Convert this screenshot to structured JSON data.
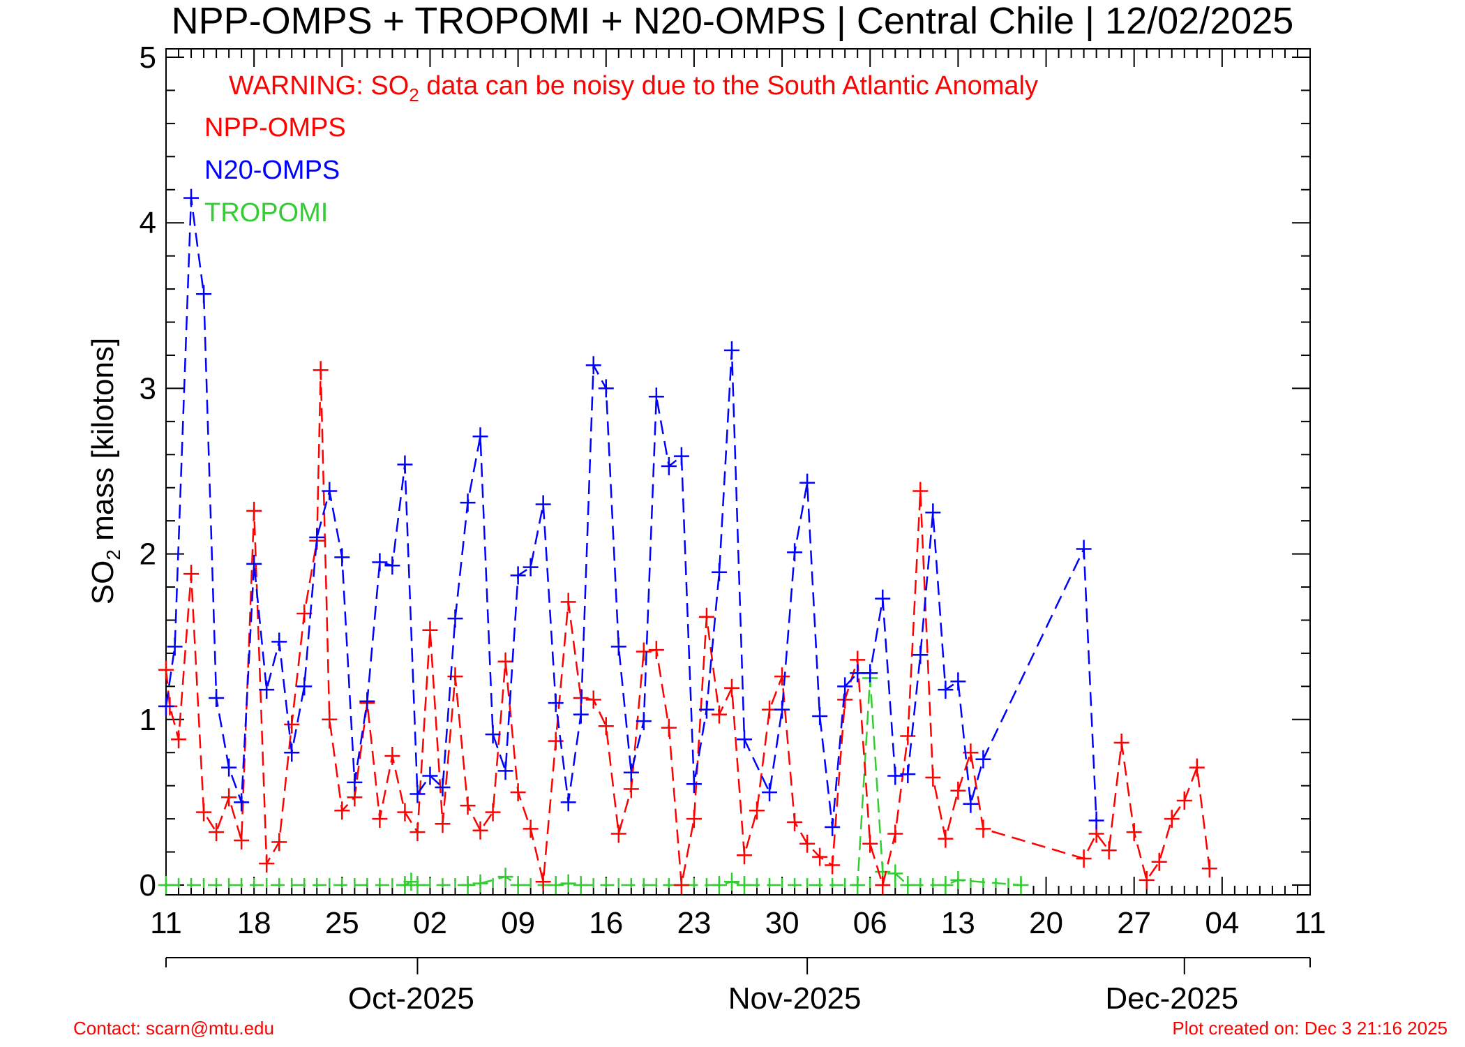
{
  "chart_data": {
    "type": "line",
    "title": "NPP-OMPS + TROPOMI + N20-OMPS | Central Chile | 12/02/2025",
    "ylabel_main": "SO",
    "ylabel_sub": "2",
    "ylabel_rest": " mass [kilotons]",
    "warning": {
      "prefix": "WARNING: SO",
      "sub": "2",
      "suffix": " data can be noisy due to the South Atlantic Anomaly",
      "color": "#ff0000"
    },
    "ylim": [
      0,
      5
    ],
    "yticks": [
      "0",
      "1",
      "2",
      "3",
      "4",
      "5"
    ],
    "x_range_days": [
      0,
      91
    ],
    "x_tick_labels": [
      "11",
      "18",
      "25",
      "02",
      "09",
      "16",
      "23",
      "30",
      "06",
      "13",
      "20",
      "27",
      "04",
      "11"
    ],
    "month_labels": [
      "Oct-2025",
      "Nov-2025",
      "Dec-2025"
    ],
    "month_positions_days": [
      19.5,
      50,
      80
    ],
    "grid": false,
    "legend_placement": "top-left",
    "series": [
      {
        "name": "NPP-OMPS",
        "color": "#ff0000",
        "points": [
          [
            0,
            1.3
          ],
          [
            0.3,
            1.08
          ],
          [
            1,
            0.88
          ],
          [
            2,
            1.88
          ],
          [
            3,
            0.44
          ],
          [
            4,
            0.32
          ],
          [
            5,
            0.53
          ],
          [
            6,
            0.27
          ],
          [
            7,
            2.26
          ],
          [
            8,
            0.13
          ],
          [
            9,
            0.26
          ],
          [
            10,
            0.97
          ],
          [
            11,
            1.64
          ],
          [
            12,
            2.08
          ],
          [
            12.3,
            3.11
          ],
          [
            13,
            1.0
          ],
          [
            14,
            0.45
          ],
          [
            15,
            0.53
          ],
          [
            16,
            1.1
          ],
          [
            17,
            0.4
          ],
          [
            18,
            0.78
          ],
          [
            19,
            0.44
          ],
          [
            20,
            0.32
          ],
          [
            21,
            1.54
          ],
          [
            22,
            0.37
          ],
          [
            23,
            1.26
          ],
          [
            24,
            0.48
          ],
          [
            25,
            0.33
          ],
          [
            26,
            0.44
          ],
          [
            27,
            1.35
          ],
          [
            28,
            0.56
          ],
          [
            29,
            0.34
          ],
          [
            30,
            0.02
          ],
          [
            31,
            0.87
          ],
          [
            32,
            1.71
          ],
          [
            33,
            1.13
          ],
          [
            34,
            1.12
          ],
          [
            35,
            0.96
          ],
          [
            36,
            0.31
          ],
          [
            37,
            0.58
          ],
          [
            38,
            1.41
          ],
          [
            39,
            1.42
          ],
          [
            40,
            0.95
          ],
          [
            41,
            0.0
          ],
          [
            42,
            0.4
          ],
          [
            43,
            1.62
          ],
          [
            44,
            1.03
          ],
          [
            45,
            1.19
          ],
          [
            46,
            0.18
          ],
          [
            47,
            0.45
          ],
          [
            48,
            1.06
          ],
          [
            49,
            1.26
          ],
          [
            50,
            0.38
          ],
          [
            51,
            0.25
          ],
          [
            52,
            0.17
          ],
          [
            53,
            0.12
          ],
          [
            54,
            1.12
          ],
          [
            55,
            1.36
          ],
          [
            56,
            0.25
          ],
          [
            57,
            0.0
          ],
          [
            58,
            0.31
          ],
          [
            59,
            0.9
          ],
          [
            60,
            2.38
          ],
          [
            61,
            0.65
          ],
          [
            62,
            0.28
          ],
          [
            63,
            0.57
          ],
          [
            64,
            0.8
          ],
          [
            65,
            0.34
          ],
          [
            73,
            0.16
          ],
          [
            74,
            0.31
          ],
          [
            75,
            0.21
          ],
          [
            76,
            0.86
          ],
          [
            77,
            0.32
          ],
          [
            78,
            0.03
          ],
          [
            79,
            0.14
          ],
          [
            80,
            0.4
          ],
          [
            81,
            0.51
          ],
          [
            82,
            0.71
          ],
          [
            83,
            0.1
          ]
        ]
      },
      {
        "name": "N20-OMPS",
        "color": "#0000ff",
        "points": [
          [
            0,
            1.08
          ],
          [
            0.7,
            1.44
          ],
          [
            2,
            4.15
          ],
          [
            3,
            3.57
          ],
          [
            4,
            1.13
          ],
          [
            5,
            0.71
          ],
          [
            6,
            0.5
          ],
          [
            7,
            1.94
          ],
          [
            8,
            1.18
          ],
          [
            9,
            1.47
          ],
          [
            10,
            0.8
          ],
          [
            11,
            1.2
          ],
          [
            12,
            2.1
          ],
          [
            13,
            2.38
          ],
          [
            14,
            1.98
          ],
          [
            15,
            0.62
          ],
          [
            16,
            1.11
          ],
          [
            17,
            1.95
          ],
          [
            18,
            1.93
          ],
          [
            19,
            2.54
          ],
          [
            20,
            0.55
          ],
          [
            21,
            0.66
          ],
          [
            22,
            0.59
          ],
          [
            23,
            1.61
          ],
          [
            24,
            2.31
          ],
          [
            25,
            2.71
          ],
          [
            26,
            0.91
          ],
          [
            27,
            0.69
          ],
          [
            28,
            1.87
          ],
          [
            29,
            1.92
          ],
          [
            30,
            2.3
          ],
          [
            31,
            1.1
          ],
          [
            32,
            0.5
          ],
          [
            33,
            1.03
          ],
          [
            34,
            3.14
          ],
          [
            35,
            3.0
          ],
          [
            36,
            1.44
          ],
          [
            37,
            0.68
          ],
          [
            38,
            0.99
          ],
          [
            39,
            2.95
          ],
          [
            40,
            2.53
          ],
          [
            41,
            2.59
          ],
          [
            42,
            0.61
          ],
          [
            43,
            1.06
          ],
          [
            44,
            1.89
          ],
          [
            45,
            3.23
          ],
          [
            46,
            0.88
          ],
          [
            48,
            0.56
          ],
          [
            49,
            1.06
          ],
          [
            50,
            2.01
          ],
          [
            51,
            2.43
          ],
          [
            52,
            1.02
          ],
          [
            53,
            0.35
          ],
          [
            54,
            1.2
          ],
          [
            55,
            1.28
          ],
          [
            56,
            1.28
          ],
          [
            57,
            1.73
          ],
          [
            58,
            0.66
          ],
          [
            59,
            0.67
          ],
          [
            60,
            1.39
          ],
          [
            61,
            2.25
          ],
          [
            62,
            1.18
          ],
          [
            63,
            1.23
          ],
          [
            64,
            0.49
          ],
          [
            65,
            0.76
          ],
          [
            73,
            2.03
          ],
          [
            74,
            0.39
          ]
        ]
      },
      {
        "name": "TROPOMI",
        "color": "#33cc33",
        "points": [
          [
            0,
            0
          ],
          [
            19,
            0
          ],
          [
            19.5,
            0.02
          ],
          [
            20,
            0
          ],
          [
            24,
            0
          ],
          [
            25,
            0.01
          ],
          [
            27,
            0.05
          ],
          [
            28,
            0
          ],
          [
            31,
            0
          ],
          [
            32,
            0.01
          ],
          [
            33,
            0
          ],
          [
            44,
            0
          ],
          [
            45,
            0.02
          ],
          [
            46,
            0
          ],
          [
            55,
            0
          ],
          [
            56,
            1.25
          ],
          [
            57,
            0.08
          ],
          [
            58,
            0.07
          ],
          [
            59,
            0
          ],
          [
            62,
            0
          ],
          [
            63,
            0.03
          ],
          [
            68,
            0
          ]
        ]
      }
    ]
  },
  "footer": {
    "contact": "Contact: scarn@mtu.edu",
    "created": "Plot created on: Dec  3 21:16 2025"
  }
}
